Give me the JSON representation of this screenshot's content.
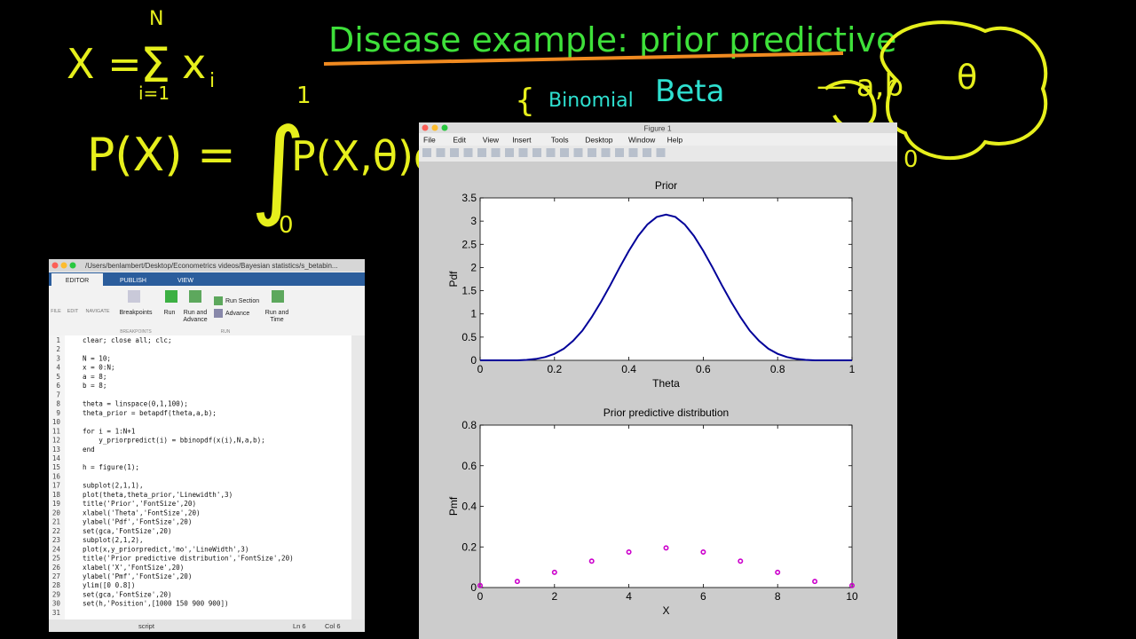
{
  "board": {
    "sum_lhs": "X =",
    "sum_sign": "Σ",
    "sum_upper": "N",
    "sum_lower": "i=1",
    "sum_term": "x",
    "sum_sub": "i",
    "heading": "Disease example: prior predictive",
    "int_lhs": "P(X) =",
    "int_sign": "∫",
    "int_upper": "1",
    "int_lower": "0",
    "int_body": "P(X,θ)d",
    "binomial": "Binomial",
    "beta": "Beta",
    "beta_params": "— a,b",
    "theta": "θ",
    "zero": "0"
  },
  "editor": {
    "title": "/Users/benlambert/Desktop/Econometrics videos/Bayesian statistics/s_betabin...",
    "tabs": [
      "EDITOR",
      "PUBLISH",
      "VIEW"
    ],
    "groups": [
      "FILE",
      "EDIT",
      "NAVIGATE"
    ],
    "breakpoints": "Breakpoints",
    "run": "Run",
    "run_advance": [
      "Run and",
      "Advance"
    ],
    "run_section": "Run Section",
    "advance": "Advance",
    "run_time": [
      "Run and",
      "Time"
    ],
    "sections": [
      "BREAKPOINTS",
      "RUN"
    ],
    "code_lines": [
      {
        "number": 1,
        "code": "clear; close all; clc;"
      },
      {
        "number": 2
      },
      {
        "number": 3,
        "code": "N = 10;"
      },
      {
        "number": 4,
        "code": "x = 0:N;"
      },
      {
        "number": 5,
        "code": "a = 8;"
      },
      {
        "number": 6,
        "code": "b = 8;"
      },
      {
        "number": 7
      },
      {
        "number": 8,
        "code": "theta = linspace(0,1,100);"
      },
      {
        "number": 9,
        "code": "theta_prior = betapdf(theta,a,b);"
      },
      {
        "number": 10
      },
      {
        "number": 11,
        "code": "for i = 1:N+1"
      },
      {
        "number": 12,
        "code": "    y_priorpredict(i) = bbinopdf(x(i),N,a,b);"
      },
      {
        "number": 13,
        "code": "end"
      },
      {
        "number": 14
      },
      {
        "number": 15,
        "code": "h = figure(1);"
      },
      {
        "number": 16
      },
      {
        "number": 17,
        "code": "subplot(2,1,1),"
      },
      {
        "number": 18,
        "code": "plot(theta,theta_prior,'Linewidth',3)"
      },
      {
        "number": 19,
        "code": "title('Prior','FontSize',20)"
      },
      {
        "number": 20,
        "code": "xlabel('Theta','FontSize',20)"
      },
      {
        "number": 21,
        "code": "ylabel('Pdf','FontSize',20)"
      },
      {
        "number": 22,
        "code": "set(gca,'FontSize',20)"
      },
      {
        "number": 23,
        "code": "subplot(2,1,2),"
      },
      {
        "number": 24,
        "code": "plot(x,y_priorpredict,'mo','LineWidth',3)"
      },
      {
        "number": 25,
        "code": "title('Prior predictive distribution','FontSize',20)"
      },
      {
        "number": 26,
        "code": "xlabel('X','FontSize',20)"
      },
      {
        "number": 27,
        "code": "ylabel('Pmf','FontSize',20)"
      },
      {
        "number": 28,
        "code": "ylim([0 0.8])"
      },
      {
        "number": 29,
        "code": "set(gca,'FontSize',20)"
      },
      {
        "number": 30,
        "code": "set(h,'Position',[1000 150 900 900])"
      },
      {
        "number": 31
      }
    ],
    "status": {
      "kind": "script",
      "line": "Ln 6",
      "col": "Col 6"
    }
  },
  "figure": {
    "title": "Figure 1",
    "menu": [
      "File",
      "Edit",
      "View",
      "Insert",
      "Tools",
      "Desktop",
      "Window",
      "Help"
    ]
  },
  "chart_data": [
    {
      "type": "line",
      "title": "Prior",
      "x_label": "Theta",
      "y_label": "Pdf",
      "color": "#000099",
      "x": [
        0,
        0.025,
        0.05,
        0.075,
        0.1,
        0.125,
        0.15,
        0.175,
        0.2,
        0.225,
        0.25,
        0.275,
        0.3,
        0.325,
        0.35,
        0.375,
        0.4,
        0.425,
        0.45,
        0.475,
        0.5,
        0.525,
        0.55,
        0.575,
        0.6,
        0.625,
        0.65,
        0.675,
        0.7,
        0.725,
        0.75,
        0.775,
        0.8,
        0.825,
        0.85,
        0.875,
        0.9,
        0.925,
        0.95,
        0.975,
        1
      ],
      "values": [
        0,
        0,
        0,
        0,
        0,
        0.01,
        0.03,
        0.07,
        0.14,
        0.25,
        0.42,
        0.64,
        0.93,
        1.26,
        1.62,
        2.0,
        2.36,
        2.68,
        2.93,
        3.09,
        3.14,
        3.09,
        2.93,
        2.68,
        2.36,
        2.0,
        1.62,
        1.26,
        0.93,
        0.64,
        0.42,
        0.25,
        0.14,
        0.07,
        0.03,
        0.01,
        0,
        0,
        0,
        0,
        0
      ],
      "xlim": [
        0,
        1
      ],
      "ylim": [
        0,
        3.5
      ],
      "xticks": [
        0,
        0.2,
        0.4,
        0.6,
        0.8,
        1
      ],
      "yticks": [
        0,
        0.5,
        1,
        1.5,
        2,
        2.5,
        3,
        3.5
      ]
    },
    {
      "type": "scatter",
      "title": "Prior predictive distribution",
      "x_label": "X",
      "y_label": "Pmf",
      "color": "#cc00cc",
      "x": [
        0,
        1,
        2,
        3,
        4,
        5,
        6,
        7,
        8,
        9,
        10
      ],
      "values": [
        0.01,
        0.03,
        0.075,
        0.13,
        0.175,
        0.195,
        0.175,
        0.13,
        0.075,
        0.03,
        0.01
      ],
      "xlim": [
        0,
        10
      ],
      "ylim": [
        0,
        0.8
      ],
      "xticks": [
        0,
        2,
        4,
        6,
        8,
        10
      ],
      "yticks": [
        0,
        0.2,
        0.4,
        0.6,
        0.8
      ]
    }
  ]
}
